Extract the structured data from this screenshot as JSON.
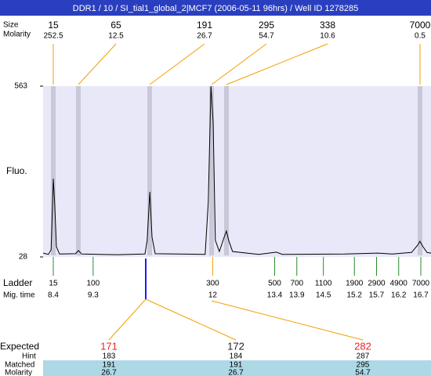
{
  "header": {
    "title": "DDR1 / 10 / SI_tial1_global_2|MCF7 (2006-05-11 96hrs) / Well ID 1278285"
  },
  "labels": {
    "size": "Size",
    "molarity": "Molarity",
    "fluo": "Fluo.",
    "ladder": "Ladder",
    "mig_time": "Mig. time",
    "expected": "Expected",
    "hint": "Hint",
    "matched": "Matched",
    "molarity_row": "Molarity"
  },
  "peaks": [
    {
      "size": 15,
      "molarity": 252.5
    },
    {
      "size": 65,
      "molarity": 12.5
    },
    {
      "size": 191,
      "molarity": 26.7
    },
    {
      "size": 295,
      "molarity": 54.7
    },
    {
      "size": 338,
      "molarity": 10.6
    },
    {
      "size": 7000,
      "molarity": 0.5
    }
  ],
  "chart_data": {
    "type": "line",
    "color": "#000000",
    "xlim": [
      8.17,
      16.93
    ],
    "ylim": [
      28,
      563
    ],
    "yticks": [
      28,
      563
    ],
    "x": [
      8.17,
      8.29,
      8.35,
      8.38,
      8.4,
      8.43,
      8.47,
      8.54,
      8.9,
      8.97,
      9.04,
      9.85,
      10.47,
      10.52,
      10.58,
      10.63,
      10.7,
      11.83,
      11.9,
      11.96,
      12.01,
      12.06,
      12.15,
      12.26,
      12.31,
      12.36,
      12.45,
      13.04,
      13.44,
      13.57,
      14.98,
      15.73,
      16.05,
      16.49,
      16.63,
      16.68,
      16.75,
      16.84,
      16.93
    ],
    "values": [
      40,
      36,
      50,
      180,
      273,
      200,
      60,
      37,
      38,
      48,
      37,
      35,
      37,
      80,
      232,
      90,
      38,
      36,
      200,
      563,
      450,
      80,
      45,
      90,
      109,
      80,
      45,
      36,
      43,
      36,
      37,
      40,
      37,
      42,
      65,
      77,
      60,
      42,
      40
    ]
  },
  "ladder": [
    {
      "size": 15,
      "mig_time": 8.4
    },
    {
      "size": 100,
      "mig_time": 9.3
    },
    {
      "size": 300,
      "mig_time": 12
    },
    {
      "size": 500,
      "mig_time": 13.4
    },
    {
      "size": 700,
      "mig_time": 13.9
    },
    {
      "size": 1100,
      "mig_time": 14.5
    },
    {
      "size": 1900,
      "mig_time": 15.2
    },
    {
      "size": 2900,
      "mig_time": 15.7
    },
    {
      "size": 4900,
      "mig_time": 16.2
    },
    {
      "size": 7000,
      "mig_time": 16.7
    }
  ],
  "expected": [
    {
      "value": 171,
      "color": "#e8231f",
      "hint": 183,
      "matched": 191,
      "molarity": 26.7
    },
    {
      "value": 172,
      "color": "#222222",
      "hint": 184,
      "matched": 191,
      "molarity": 26.7
    },
    {
      "value": 282,
      "color": "#e8231f",
      "hint": 287,
      "matched": 295,
      "molarity": 54.7
    }
  ]
}
